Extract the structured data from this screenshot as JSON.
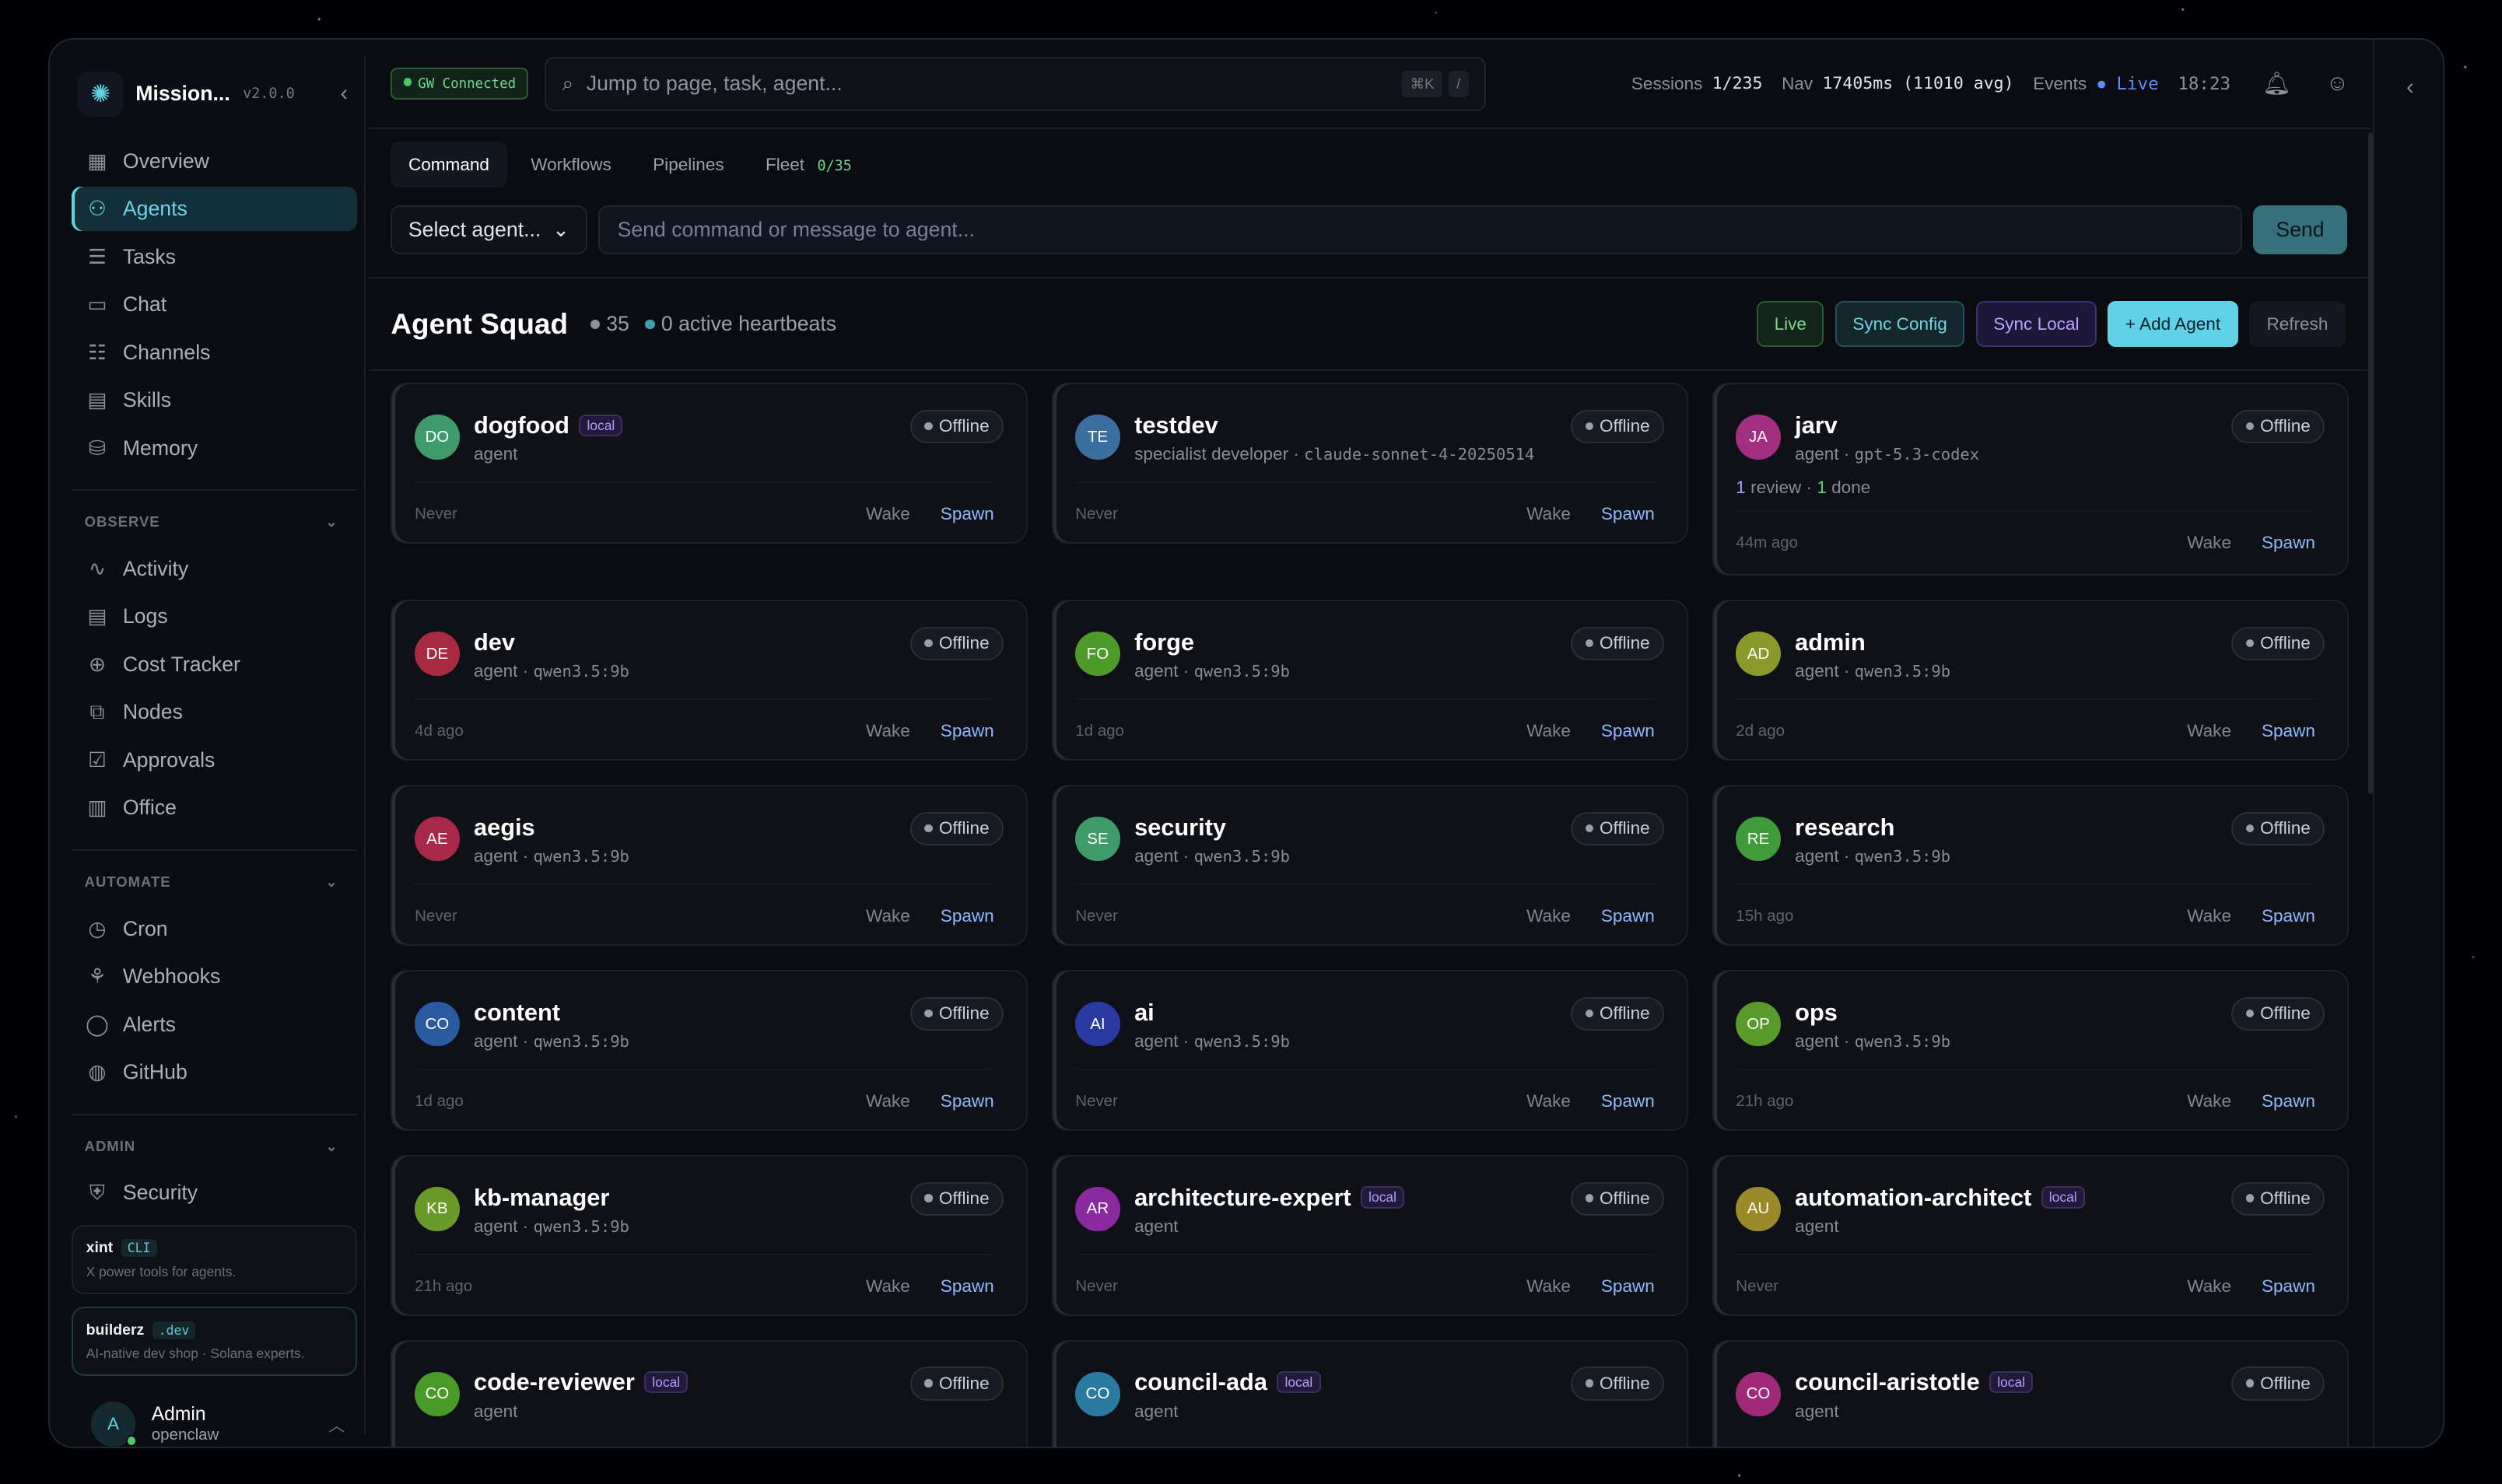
{
  "app": {
    "title": "Mission...",
    "version": "v2.0.0"
  },
  "sidebar": {
    "items": [
      {
        "label": "Overview",
        "icon": "grid-icon",
        "active": false
      },
      {
        "label": "Agents",
        "icon": "user-icon",
        "active": true
      },
      {
        "label": "Tasks",
        "icon": "list-icon",
        "active": false
      },
      {
        "label": "Chat",
        "icon": "chat-icon",
        "active": false
      },
      {
        "label": "Channels",
        "icon": "sliders-icon",
        "active": false
      },
      {
        "label": "Skills",
        "icon": "book-icon",
        "active": false
      },
      {
        "label": "Memory",
        "icon": "database-icon",
        "active": false
      }
    ],
    "observe": {
      "label": "OBSERVE",
      "items": [
        {
          "label": "Activity",
          "icon": "activity-icon"
        },
        {
          "label": "Logs",
          "icon": "log-icon"
        },
        {
          "label": "Cost Tracker",
          "icon": "coin-icon"
        },
        {
          "label": "Nodes",
          "icon": "nodes-icon"
        },
        {
          "label": "Approvals",
          "icon": "check-calendar-icon"
        },
        {
          "label": "Office",
          "icon": "building-icon"
        }
      ]
    },
    "automate": {
      "label": "AUTOMATE",
      "items": [
        {
          "label": "Cron",
          "icon": "clock-icon"
        },
        {
          "label": "Webhooks",
          "icon": "webhook-icon"
        },
        {
          "label": "Alerts",
          "icon": "bell-icon"
        },
        {
          "label": "GitHub",
          "icon": "github-icon"
        }
      ]
    },
    "admin": {
      "label": "ADMIN",
      "items": [
        {
          "label": "Security",
          "icon": "shield-icon"
        }
      ]
    },
    "promos": [
      {
        "name": "xint",
        "tag": "CLI",
        "desc": "X power tools for agents."
      },
      {
        "name": "builderz",
        "tag": ".dev",
        "desc": "AI-native dev shop · Solana experts."
      }
    ],
    "user": {
      "initial": "A",
      "name": "Admin",
      "org": "openclaw"
    }
  },
  "header": {
    "gateway": "GW Connected",
    "search_placeholder": "Jump to page, task, agent...",
    "kbd": [
      "⌘K",
      "/"
    ],
    "sessions_label": "Sessions",
    "sessions": "1/235",
    "nav_label": "Nav",
    "nav": "17405ms (11010 avg)",
    "events_label": "Events",
    "events": "Live",
    "time": "18:23"
  },
  "tabs": [
    {
      "label": "Command"
    },
    {
      "label": "Workflows"
    },
    {
      "label": "Pipelines"
    },
    {
      "label": "Fleet"
    }
  ],
  "fleet_count": "0/35",
  "command": {
    "select": "Select agent...",
    "placeholder": "Send command or message to agent...",
    "send": "Send"
  },
  "squad": {
    "title": "Agent Squad",
    "count": "35",
    "heartbeats": "0 active heartbeats",
    "buttons": {
      "live": "Live",
      "sync_config": "Sync Config",
      "sync_local": "Sync Local",
      "add": "+ Add Agent",
      "refresh": "Refresh"
    }
  },
  "card_labels": {
    "status": "Offline",
    "wake": "Wake",
    "spawn": "Spawn"
  },
  "agents": [
    {
      "initials": "DO",
      "name": "dogfood",
      "local": true,
      "role": "agent",
      "model": "",
      "last": "Never",
      "color": "#3f9a6c"
    },
    {
      "initials": "TE",
      "name": "testdev",
      "local": false,
      "role": "specialist developer",
      "model": "claude-sonnet-4-20250514",
      "last": "Never",
      "color": "#3a6fa0"
    },
    {
      "initials": "JA",
      "name": "jarv",
      "local": false,
      "role": "agent",
      "model": "gpt-5.3-codex",
      "last": "44m ago",
      "color": "#a0307f",
      "review": "1",
      "review_label": "review",
      "done": "1",
      "done_label": "done"
    },
    {
      "initials": "DE",
      "name": "dev",
      "local": false,
      "role": "agent",
      "model": "qwen3.5:9b",
      "last": "4d ago",
      "color": "#a82a40"
    },
    {
      "initials": "FO",
      "name": "forge",
      "local": false,
      "role": "agent",
      "model": "qwen3.5:9b",
      "last": "1d ago",
      "color": "#4e9a2a"
    },
    {
      "initials": "AD",
      "name": "admin",
      "local": false,
      "role": "agent",
      "model": "qwen3.5:9b",
      "last": "2d ago",
      "color": "#8a9a2a"
    },
    {
      "initials": "AE",
      "name": "aegis",
      "local": false,
      "role": "agent",
      "model": "qwen3.5:9b",
      "last": "Never",
      "color": "#a8284a"
    },
    {
      "initials": "SE",
      "name": "security",
      "local": false,
      "role": "agent",
      "model": "qwen3.5:9b",
      "last": "Never",
      "color": "#3f9a6a"
    },
    {
      "initials": "RE",
      "name": "research",
      "local": false,
      "role": "agent",
      "model": "qwen3.5:9b",
      "last": "15h ago",
      "color": "#3f9a3a"
    },
    {
      "initials": "CO",
      "name": "content",
      "local": false,
      "role": "agent",
      "model": "qwen3.5:9b",
      "last": "1d ago",
      "color": "#2a5aa0"
    },
    {
      "initials": "AI",
      "name": "ai",
      "local": false,
      "role": "agent",
      "model": "qwen3.5:9b",
      "last": "Never",
      "color": "#2a3aa0"
    },
    {
      "initials": "OP",
      "name": "ops",
      "local": false,
      "role": "agent",
      "model": "qwen3.5:9b",
      "last": "21h ago",
      "color": "#5a9a2a"
    },
    {
      "initials": "KB",
      "name": "kb-manager",
      "local": false,
      "role": "agent",
      "model": "qwen3.5:9b",
      "last": "21h ago",
      "color": "#6a9a2a"
    },
    {
      "initials": "AR",
      "name": "architecture-expert",
      "local": true,
      "role": "agent",
      "model": "",
      "last": "Never",
      "color": "#8a2aa0"
    },
    {
      "initials": "AU",
      "name": "automation-architect",
      "local": true,
      "role": "agent",
      "model": "",
      "last": "Never",
      "color": "#9a8a2a"
    },
    {
      "initials": "CO",
      "name": "code-reviewer",
      "local": true,
      "role": "agent",
      "model": "",
      "last": "",
      "color": "#4a9a2a"
    },
    {
      "initials": "CO",
      "name": "council-ada",
      "local": true,
      "role": "agent",
      "model": "",
      "last": "",
      "color": "#2a7aa0"
    },
    {
      "initials": "CO",
      "name": "council-aristotle",
      "local": true,
      "role": "agent",
      "model": "",
      "last": "",
      "color": "#a02a7a"
    }
  ],
  "local_label": "local",
  "colors": {
    "accent": "#5fd2e0",
    "background": "#0a0c11",
    "card": "#0f1117"
  }
}
